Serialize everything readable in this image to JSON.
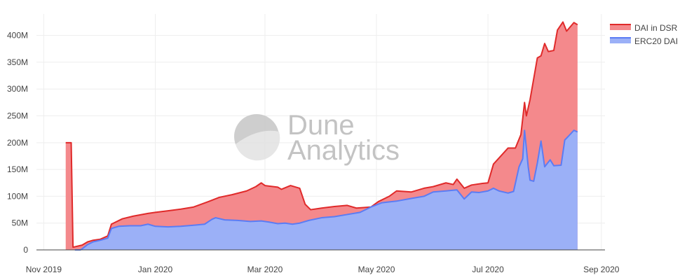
{
  "watermark": {
    "line1": "Dune",
    "line2": "Analytics",
    "logo_icon": "dune-analytics-logo-icon"
  },
  "chart_data": {
    "type": "area",
    "stacked": true,
    "grid": true,
    "legend_position": "top-right",
    "xlim": [
      "2019-10-28",
      "2020-09-03"
    ],
    "ylim": [
      0,
      440000000
    ],
    "y_ticks": [
      0,
      50000000,
      100000000,
      150000000,
      200000000,
      250000000,
      300000000,
      350000000,
      400000000
    ],
    "y_tick_labels": [
      "0",
      "50M",
      "100M",
      "150M",
      "200M",
      "250M",
      "300M",
      "350M",
      "400M"
    ],
    "x_ticks": [
      "2019-11-01",
      "2020-01-01",
      "2020-03-01",
      "2020-05-01",
      "2020-07-01",
      "2020-09-01"
    ],
    "x_tick_labels": [
      "Nov 2019",
      "Jan 2020",
      "Mar 2020",
      "May 2020",
      "Jul 2020",
      "Sep 2020"
    ],
    "series": [
      {
        "name": "ERC20 DAI",
        "line_color": "#5b7cf4",
        "fill_color": "#9bb0f7",
        "points": [
          [
            "2019-11-18",
            0
          ],
          [
            "2019-11-21",
            0
          ],
          [
            "2019-11-22",
            2000000
          ],
          [
            "2019-11-25",
            10000000
          ],
          [
            "2019-11-28",
            15000000
          ],
          [
            "2019-12-02",
            18000000
          ],
          [
            "2019-12-06",
            22000000
          ],
          [
            "2019-12-08",
            40000000
          ],
          [
            "2019-12-12",
            44000000
          ],
          [
            "2019-12-18",
            45000000
          ],
          [
            "2019-12-24",
            45000000
          ],
          [
            "2019-12-28",
            48000000
          ],
          [
            "2020-01-01",
            44000000
          ],
          [
            "2020-01-08",
            43000000
          ],
          [
            "2020-01-15",
            44000000
          ],
          [
            "2020-01-22",
            46000000
          ],
          [
            "2020-01-28",
            48000000
          ],
          [
            "2020-02-01",
            57000000
          ],
          [
            "2020-02-03",
            60000000
          ],
          [
            "2020-02-08",
            56000000
          ],
          [
            "2020-02-15",
            55000000
          ],
          [
            "2020-02-22",
            53000000
          ],
          [
            "2020-02-28",
            54000000
          ],
          [
            "2020-03-03",
            52000000
          ],
          [
            "2020-03-08",
            49000000
          ],
          [
            "2020-03-12",
            50000000
          ],
          [
            "2020-03-16",
            48000000
          ],
          [
            "2020-03-20",
            50000000
          ],
          [
            "2020-03-25",
            55000000
          ],
          [
            "2020-04-01",
            60000000
          ],
          [
            "2020-04-08",
            62000000
          ],
          [
            "2020-04-15",
            66000000
          ],
          [
            "2020-04-22",
            70000000
          ],
          [
            "2020-04-28",
            80000000
          ],
          [
            "2020-05-04",
            88000000
          ],
          [
            "2020-05-12",
            91000000
          ],
          [
            "2020-05-20",
            96000000
          ],
          [
            "2020-05-27",
            100000000
          ],
          [
            "2020-06-01",
            108000000
          ],
          [
            "2020-06-08",
            110000000
          ],
          [
            "2020-06-14",
            112000000
          ],
          [
            "2020-06-18",
            95000000
          ],
          [
            "2020-06-22",
            108000000
          ],
          [
            "2020-06-26",
            107000000
          ],
          [
            "2020-07-01",
            110000000
          ],
          [
            "2020-07-04",
            115000000
          ],
          [
            "2020-07-07",
            110000000
          ],
          [
            "2020-07-12",
            106000000
          ],
          [
            "2020-07-15",
            109000000
          ],
          [
            "2020-07-18",
            155000000
          ],
          [
            "2020-07-20",
            170000000
          ],
          [
            "2020-07-21",
            223000000
          ],
          [
            "2020-07-23",
            155000000
          ],
          [
            "2020-07-24",
            130000000
          ],
          [
            "2020-07-26",
            128000000
          ],
          [
            "2020-07-28",
            162000000
          ],
          [
            "2020-07-30",
            203000000
          ],
          [
            "2020-08-01",
            155000000
          ],
          [
            "2020-08-04",
            168000000
          ],
          [
            "2020-08-06",
            157000000
          ],
          [
            "2020-08-10",
            158000000
          ],
          [
            "2020-08-12",
            205000000
          ],
          [
            "2020-08-14",
            212000000
          ],
          [
            "2020-08-17",
            223000000
          ],
          [
            "2020-08-19",
            220000000
          ]
        ]
      },
      {
        "name": "DAI in DSR",
        "line_color": "#e02a2a",
        "fill_color": "#f4898c",
        "points": [
          [
            "2019-11-13",
            200000000
          ],
          [
            "2019-11-16",
            200000000
          ],
          [
            "2019-11-17",
            5000000
          ],
          [
            "2019-11-22",
            9000000
          ],
          [
            "2019-11-25",
            15000000
          ],
          [
            "2019-11-28",
            18000000
          ],
          [
            "2019-12-02",
            20000000
          ],
          [
            "2019-12-06",
            26000000
          ],
          [
            "2019-12-08",
            48000000
          ],
          [
            "2019-12-14",
            58000000
          ],
          [
            "2019-12-20",
            63000000
          ],
          [
            "2019-12-28",
            68000000
          ],
          [
            "2020-01-01",
            70000000
          ],
          [
            "2020-01-08",
            73000000
          ],
          [
            "2020-01-15",
            76000000
          ],
          [
            "2020-01-22",
            80000000
          ],
          [
            "2020-01-30",
            90000000
          ],
          [
            "2020-02-05",
            98000000
          ],
          [
            "2020-02-12",
            103000000
          ],
          [
            "2020-02-20",
            110000000
          ],
          [
            "2020-02-25",
            118000000
          ],
          [
            "2020-02-28",
            125000000
          ],
          [
            "2020-03-01",
            120000000
          ],
          [
            "2020-03-08",
            117000000
          ],
          [
            "2020-03-10",
            113000000
          ],
          [
            "2020-03-15",
            120000000
          ],
          [
            "2020-03-20",
            115000000
          ],
          [
            "2020-03-23",
            85000000
          ],
          [
            "2020-03-26",
            75000000
          ],
          [
            "2020-04-01",
            78000000
          ],
          [
            "2020-04-08",
            81000000
          ],
          [
            "2020-04-15",
            83000000
          ],
          [
            "2020-04-20",
            78000000
          ],
          [
            "2020-04-28",
            80000000
          ],
          [
            "2020-05-02",
            90000000
          ],
          [
            "2020-05-08",
            100000000
          ],
          [
            "2020-05-12",
            110000000
          ],
          [
            "2020-05-20",
            108000000
          ],
          [
            "2020-05-27",
            115000000
          ],
          [
            "2020-06-01",
            118000000
          ],
          [
            "2020-06-08",
            125000000
          ],
          [
            "2020-06-12",
            122000000
          ],
          [
            "2020-06-14",
            132000000
          ],
          [
            "2020-06-18",
            115000000
          ],
          [
            "2020-06-22",
            121000000
          ],
          [
            "2020-06-28",
            124000000
          ],
          [
            "2020-07-01",
            125000000
          ],
          [
            "2020-07-04",
            160000000
          ],
          [
            "2020-07-08",
            175000000
          ],
          [
            "2020-07-12",
            190000000
          ],
          [
            "2020-07-16",
            190000000
          ],
          [
            "2020-07-19",
            215000000
          ],
          [
            "2020-07-20",
            245000000
          ],
          [
            "2020-07-21",
            275000000
          ],
          [
            "2020-07-22",
            250000000
          ],
          [
            "2020-07-24",
            280000000
          ],
          [
            "2020-07-28",
            358000000
          ],
          [
            "2020-07-30",
            362000000
          ],
          [
            "2020-08-01",
            385000000
          ],
          [
            "2020-08-03",
            370000000
          ],
          [
            "2020-08-06",
            372000000
          ],
          [
            "2020-08-08",
            410000000
          ],
          [
            "2020-08-11",
            425000000
          ],
          [
            "2020-08-13",
            408000000
          ],
          [
            "2020-08-17",
            424000000
          ],
          [
            "2020-08-19",
            420000000
          ]
        ]
      }
    ]
  }
}
